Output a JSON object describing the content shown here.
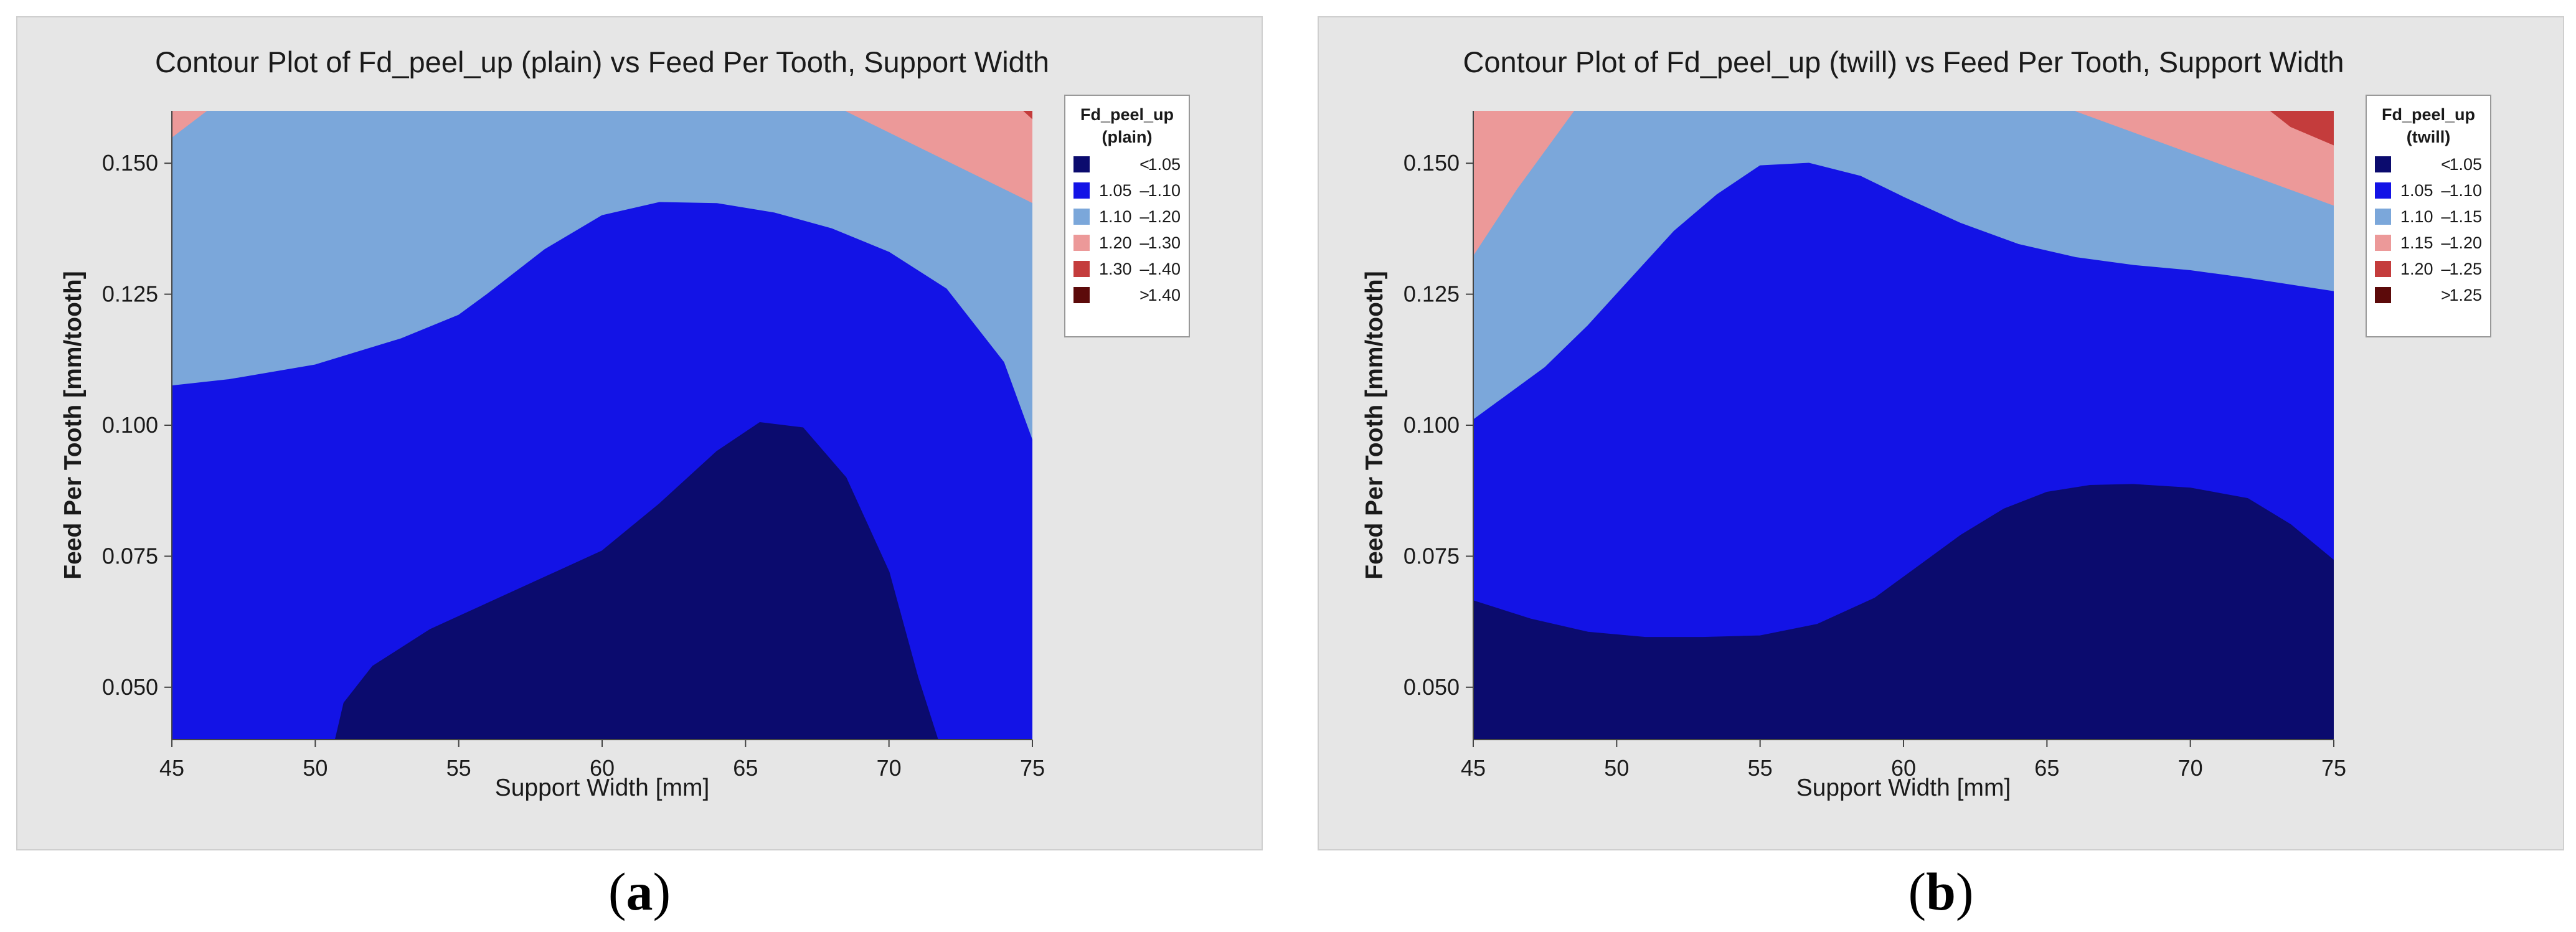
{
  "chart_data": [
    {
      "type": "contour",
      "title": "Contour Plot of Fd_peel_up (plain) vs Feed Per Tooth, Support Width",
      "xlabel": "Support Width [mm]",
      "ylabel": "Feed Per Tooth [mm/tooth]",
      "xlim": [
        45,
        75
      ],
      "ylim": [
        0.04,
        0.16
      ],
      "xticks": [
        "45",
        "50",
        "55",
        "60",
        "65",
        "70",
        "75"
      ],
      "yticks": [
        "0.050",
        "0.075",
        "0.100",
        "0.125",
        "0.150"
      ],
      "legend": {
        "title": [
          "Fd_peel_up",
          "(plain)"
        ],
        "position": "right",
        "entries": [
          {
            "op": "<",
            "a": "",
            "b": "1.05",
            "color": "#0b0b6e"
          },
          {
            "op": "–",
            "a": "1.05",
            "b": "1.10",
            "color": "#1313e6"
          },
          {
            "op": "–",
            "a": "1.10",
            "b": "1.20",
            "color": "#7ba7da"
          },
          {
            "op": "–",
            "a": "1.20",
            "b": "1.30",
            "color": "#ec9999"
          },
          {
            "op": "–",
            "a": "1.30",
            "b": "1.40",
            "color": "#c43c3c"
          },
          {
            "op": ">",
            "a": "",
            "b": "1.40",
            "color": "#5c0a0a"
          }
        ]
      },
      "regions": [
        {
          "range": "1.10 – 1.20",
          "color": "#7ba7da",
          "points": [
            [
              45,
              0.16
            ],
            [
              75,
              0.16
            ],
            [
              75,
              0.04
            ],
            [
              45,
              0.04
            ]
          ]
        },
        {
          "range": "1.20 – 1.30",
          "color": "#ec9999",
          "points": [
            [
              45,
              0.16
            ],
            [
              46.2,
              0.16
            ],
            [
              45,
              0.155
            ]
          ]
        },
        {
          "range": "1.20 – 1.30",
          "color": "#ec9999",
          "points": [
            [
              68.5,
              0.16
            ],
            [
              75,
              0.16
            ],
            [
              75,
              0.1425
            ]
          ]
        },
        {
          "range": "1.30 – 1.40",
          "color": "#c43c3c",
          "points": [
            [
              74.7,
              0.16
            ],
            [
              75,
              0.16
            ],
            [
              75,
              0.1585
            ]
          ]
        },
        {
          "range": "1.05 – 1.10",
          "color": "#1313e6",
          "points": [
            [
              45,
              0.04
            ],
            [
              45,
              0.1075
            ],
            [
              47,
              0.1087
            ],
            [
              50,
              0.1115
            ],
            [
              53,
              0.1165
            ],
            [
              55,
              0.121
            ],
            [
              56,
              0.125
            ],
            [
              58,
              0.1335
            ],
            [
              60,
              0.14
            ],
            [
              62,
              0.1425
            ],
            [
              64,
              0.1423
            ],
            [
              66,
              0.1405
            ],
            [
              68,
              0.1375
            ],
            [
              70,
              0.133
            ],
            [
              72,
              0.126
            ],
            [
              74,
              0.112
            ],
            [
              75,
              0.097
            ],
            [
              75,
              0.04
            ]
          ]
        },
        {
          "range": "< 1.05",
          "color": "#0b0b6e",
          "points": [
            [
              50.7,
              0.04
            ],
            [
              51,
              0.047
            ],
            [
              52,
              0.054
            ],
            [
              54,
              0.061
            ],
            [
              56,
              0.066
            ],
            [
              58,
              0.071
            ],
            [
              60,
              0.076
            ],
            [
              62,
              0.085
            ],
            [
              64,
              0.095
            ],
            [
              65.5,
              0.1005
            ],
            [
              67,
              0.0995
            ],
            [
              68.5,
              0.09
            ],
            [
              70,
              0.072
            ],
            [
              71,
              0.052
            ],
            [
              71.7,
              0.04
            ]
          ]
        }
      ]
    },
    {
      "type": "contour",
      "title": "Contour Plot of Fd_peel_up (twill) vs Feed Per Tooth, Support Width",
      "xlabel": "Support Width [mm]",
      "ylabel": "Feed Per Tooth [mm/tooth]",
      "xlim": [
        45,
        75
      ],
      "ylim": [
        0.04,
        0.16
      ],
      "xticks": [
        "45",
        "50",
        "55",
        "60",
        "65",
        "70",
        "75"
      ],
      "yticks": [
        "0.050",
        "0.075",
        "0.100",
        "0.125",
        "0.150"
      ],
      "legend": {
        "title": [
          "Fd_peel_up",
          "(twill)"
        ],
        "position": "right",
        "entries": [
          {
            "op": "<",
            "a": "",
            "b": "1.05",
            "color": "#0b0b6e"
          },
          {
            "op": "–",
            "a": "1.05",
            "b": "1.10",
            "color": "#1313e6"
          },
          {
            "op": "–",
            "a": "1.10",
            "b": "1.15",
            "color": "#7ba7da"
          },
          {
            "op": "–",
            "a": "1.15",
            "b": "1.20",
            "color": "#ec9999"
          },
          {
            "op": "–",
            "a": "1.20",
            "b": "1.25",
            "color": "#c43c3c"
          },
          {
            "op": ">",
            "a": "",
            "b": "1.25",
            "color": "#5c0a0a"
          }
        ]
      },
      "regions": [
        {
          "range": "1.10 – 1.15",
          "color": "#7ba7da",
          "points": [
            [
              45,
              0.16
            ],
            [
              75,
              0.16
            ],
            [
              75,
              0.04
            ],
            [
              45,
              0.04
            ]
          ]
        },
        {
          "range": "1.15 – 1.20",
          "color": "#ec9999",
          "points": [
            [
              45,
              0.16
            ],
            [
              48.5,
              0.16
            ],
            [
              46.5,
              0.145
            ],
            [
              45,
              0.1325
            ]
          ]
        },
        {
          "range": "1.15 – 1.20",
          "color": "#ec9999",
          "points": [
            [
              66,
              0.16
            ],
            [
              75,
              0.16
            ],
            [
              75,
              0.142
            ],
            [
              73,
              0.146
            ],
            [
              71,
              0.15
            ],
            [
              68,
              0.156
            ]
          ]
        },
        {
          "range": "1.20 – 1.25",
          "color": "#c43c3c",
          "points": [
            [
              72.8,
              0.16
            ],
            [
              75,
              0.16
            ],
            [
              75,
              0.1535
            ],
            [
              73.5,
              0.157
            ]
          ]
        },
        {
          "range": "1.05 – 1.10",
          "color": "#1313e6",
          "points": [
            [
              45,
              0.04
            ],
            [
              45,
              0.101
            ],
            [
              46,
              0.105
            ],
            [
              47.5,
              0.111
            ],
            [
              49,
              0.119
            ],
            [
              50.5,
              0.128
            ],
            [
              52,
              0.137
            ],
            [
              53.5,
              0.144
            ],
            [
              55,
              0.1495
            ],
            [
              56.7,
              0.15
            ],
            [
              58.5,
              0.1475
            ],
            [
              60,
              0.1435
            ],
            [
              62,
              0.1385
            ],
            [
              64,
              0.1345
            ],
            [
              66,
              0.132
            ],
            [
              68,
              0.1305
            ],
            [
              70,
              0.1295
            ],
            [
              72,
              0.128
            ],
            [
              75,
              0.1255
            ],
            [
              75,
              0.04
            ]
          ]
        },
        {
          "range": "< 1.05",
          "color": "#0b0b6e",
          "points": [
            [
              45,
              0.04
            ],
            [
              45,
              0.0665
            ],
            [
              47,
              0.063
            ],
            [
              49,
              0.0605
            ],
            [
              51,
              0.0595
            ],
            [
              53,
              0.0595
            ],
            [
              55,
              0.0598
            ],
            [
              57,
              0.062
            ],
            [
              59,
              0.067
            ],
            [
              60.5,
              0.073
            ],
            [
              62,
              0.079
            ],
            [
              63.5,
              0.084
            ],
            [
              65,
              0.0872
            ],
            [
              66.5,
              0.0885
            ],
            [
              68,
              0.0887
            ],
            [
              70,
              0.088
            ],
            [
              72,
              0.086
            ],
            [
              73.5,
              0.081
            ],
            [
              75,
              0.0742
            ],
            [
              75,
              0.04
            ]
          ]
        }
      ]
    }
  ],
  "captions": [
    "a",
    "b"
  ]
}
